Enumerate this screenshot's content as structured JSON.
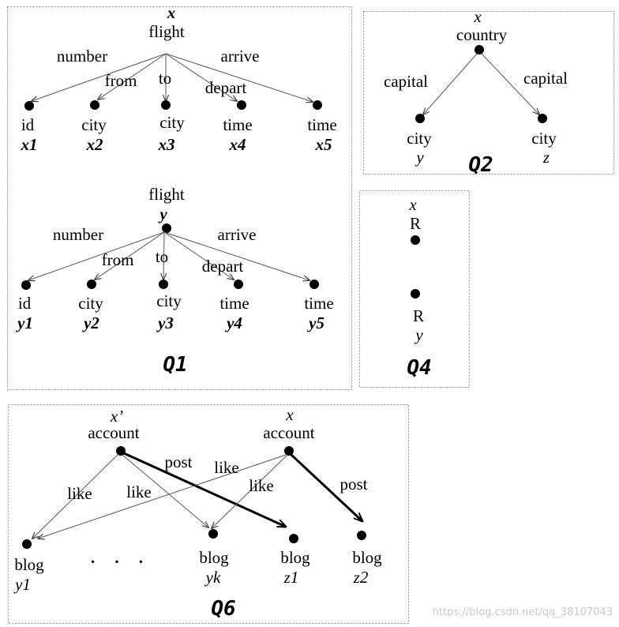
{
  "q1": {
    "title": "Q1",
    "top_tree": {
      "root_var": "x",
      "root_label": "flight",
      "edges": [
        "number",
        "from",
        "to",
        "depart",
        "arrive"
      ],
      "leaves": [
        {
          "type": "id",
          "var": "x1"
        },
        {
          "type": "city",
          "var": "x2"
        },
        {
          "type": "city",
          "var": "x3"
        },
        {
          "type": "time",
          "var": "x4"
        },
        {
          "type": "time",
          "var": "x5"
        }
      ]
    },
    "bottom_tree": {
      "root_label": "flight",
      "root_var": "y",
      "edges": [
        "number",
        "from",
        "to",
        "depart",
        "arrive"
      ],
      "leaves": [
        {
          "type": "id",
          "var": "y1"
        },
        {
          "type": "city",
          "var": "y2"
        },
        {
          "type": "city",
          "var": "y3"
        },
        {
          "type": "time",
          "var": "y4"
        },
        {
          "type": "time",
          "var": "y5"
        }
      ]
    }
  },
  "q2": {
    "title": "Q2",
    "root_var": "x",
    "root_label": "country",
    "edges": [
      "capital",
      "capital"
    ],
    "leaves": [
      {
        "type": "city",
        "var": "y"
      },
      {
        "type": "city",
        "var": "z"
      }
    ]
  },
  "q4": {
    "title": "Q4",
    "top_var": "x",
    "top_label": "R",
    "bottom_label": "R",
    "bottom_var": "y"
  },
  "q6": {
    "title": "Q6",
    "left_root_var": "x’",
    "left_root_label": "account",
    "right_root_var": "x",
    "right_root_label": "account",
    "edge_labels": {
      "left_like_1": "like",
      "left_like_2": "like",
      "left_post": "post",
      "right_like_1": "like",
      "right_like_2": "like",
      "right_post": "post"
    },
    "ellipsis": ". . .",
    "leaves": [
      {
        "type": "blog",
        "var": "y1"
      },
      {
        "type": "blog",
        "var": "yk"
      },
      {
        "type": "blog",
        "var": "z1"
      },
      {
        "type": "blog",
        "var": "z2"
      }
    ]
  },
  "watermark": "https://blog.csdn.net/qq_38107043"
}
